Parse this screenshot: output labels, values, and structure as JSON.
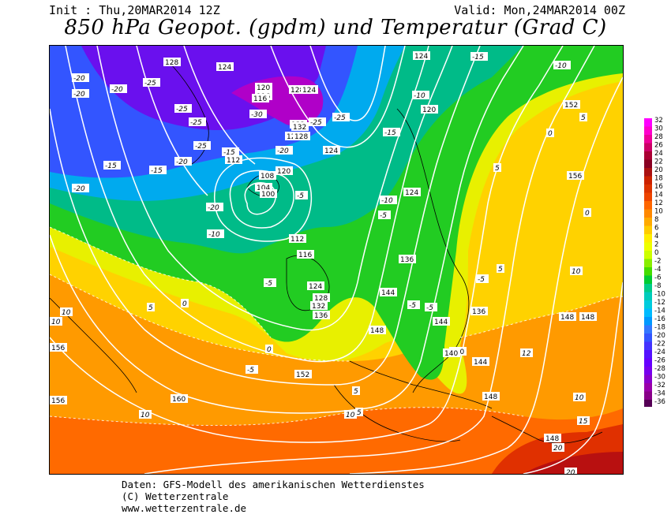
{
  "header": {
    "init": "Init : Thu,20MAR2014 12Z",
    "valid": "Valid: Mon,24MAR2014 00Z",
    "title": "850 hPa Geopot. (gpdm) und Temperatur (Grad C)"
  },
  "colorbar": {
    "labels": [
      "32",
      "30",
      "28",
      "26",
      "24",
      "22",
      "20",
      "18",
      "16",
      "14",
      "12",
      "10",
      "8",
      "6",
      "4",
      "2",
      "0",
      "-2",
      "-4",
      "-6",
      "-8",
      "-10",
      "-12",
      "-14",
      "-16",
      "-18",
      "-20",
      "-22",
      "-24",
      "-26",
      "-28",
      "-30",
      "-32",
      "-34",
      "-36"
    ],
    "colors": [
      "#ff00ff",
      "#ff00cc",
      "#ee0099",
      "#cc0066",
      "#aa0033",
      "#880022",
      "#aa1111",
      "#cc2200",
      "#dd3300",
      "#ee4400",
      "#ff6600",
      "#ff8800",
      "#ffaa00",
      "#ffcc00",
      "#ffee00",
      "#eeff00",
      "#ccff00",
      "#88ee00",
      "#44dd00",
      "#00cc33",
      "#00cc88",
      "#00ccbb",
      "#00ccdd",
      "#00bbff",
      "#0099ff",
      "#3377ff",
      "#3355ff",
      "#4433ff",
      "#5511ff",
      "#6600ff",
      "#7700ee",
      "#8800cc",
      "#9900aa",
      "#880088",
      "#550055"
    ]
  },
  "map": {
    "geopotential_labels": [
      {
        "text": "128"
      },
      {
        "text": "124"
      },
      {
        "text": "120"
      },
      {
        "text": "116"
      },
      {
        "text": "128"
      },
      {
        "text": "124"
      },
      {
        "text": "116"
      },
      {
        "text": "132"
      },
      {
        "text": "128"
      },
      {
        "text": "120"
      },
      {
        "text": "124"
      },
      {
        "text": "152"
      },
      {
        "text": "112"
      },
      {
        "text": "108"
      },
      {
        "text": "104"
      },
      {
        "text": "100"
      },
      {
        "text": "120"
      },
      {
        "text": "124"
      },
      {
        "text": "128"
      },
      {
        "text": "132"
      },
      {
        "text": "136"
      },
      {
        "text": "140"
      },
      {
        "text": "112"
      },
      {
        "text": "116"
      },
      {
        "text": "124"
      },
      {
        "text": "128"
      },
      {
        "text": "132"
      },
      {
        "text": "136"
      },
      {
        "text": "144"
      },
      {
        "text": "148"
      },
      {
        "text": "144"
      },
      {
        "text": "140"
      },
      {
        "text": "136"
      },
      {
        "text": "144"
      },
      {
        "text": "148"
      },
      {
        "text": "148"
      },
      {
        "text": "148"
      },
      {
        "text": "156"
      },
      {
        "text": "156"
      },
      {
        "text": "152"
      },
      {
        "text": "160"
      },
      {
        "text": "148"
      },
      {
        "text": "156"
      },
      {
        "text": "124"
      }
    ],
    "temperature_labels": [
      {
        "text": "-20"
      },
      {
        "text": "-20"
      },
      {
        "text": "-20"
      },
      {
        "text": "-25"
      },
      {
        "text": "-25"
      },
      {
        "text": "-25"
      },
      {
        "text": "-20"
      },
      {
        "text": "-25"
      },
      {
        "text": "-20"
      },
      {
        "text": "-30"
      },
      {
        "text": "-20"
      },
      {
        "text": "-15"
      },
      {
        "text": "-10"
      },
      {
        "text": "-15"
      },
      {
        "text": "-5"
      },
      {
        "text": "-5"
      },
      {
        "text": "-10"
      },
      {
        "text": "-15"
      },
      {
        "text": "-10"
      },
      {
        "text": "-5"
      },
      {
        "text": "-5"
      },
      {
        "text": "0"
      },
      {
        "text": "-5"
      },
      {
        "text": "5"
      },
      {
        "text": "10"
      },
      {
        "text": "10"
      },
      {
        "text": "-5"
      },
      {
        "text": "0"
      },
      {
        "text": "5"
      },
      {
        "text": "5"
      },
      {
        "text": "10"
      },
      {
        "text": "10"
      },
      {
        "text": "15"
      },
      {
        "text": "20"
      },
      {
        "text": "20"
      },
      {
        "text": "-5"
      },
      {
        "text": "5"
      },
      {
        "text": "0"
      },
      {
        "text": "0"
      },
      {
        "text": "5"
      },
      {
        "text": "-15"
      },
      {
        "text": "-10"
      },
      {
        "text": "-20"
      },
      {
        "text": "-15"
      },
      {
        "text": "-25"
      },
      {
        "text": "-25"
      },
      {
        "text": "5"
      },
      {
        "text": "10"
      },
      {
        "text": "10"
      },
      {
        "text": "12"
      }
    ]
  },
  "footer": {
    "line1": "Daten: GFS-Modell des amerikanischen Wetterdienstes",
    "line2": "(C) Wetterzentrale",
    "line3": "www.wetterzentrale.de"
  }
}
